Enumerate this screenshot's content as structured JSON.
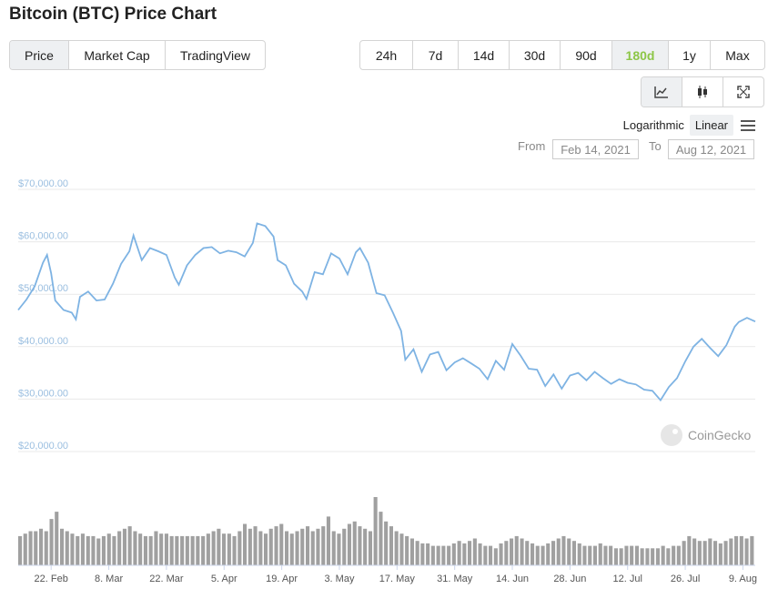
{
  "title": "Bitcoin (BTC) Price Chart",
  "view_tabs": [
    {
      "label": "Price",
      "active": true
    },
    {
      "label": "Market Cap",
      "active": false
    },
    {
      "label": "TradingView",
      "active": false
    }
  ],
  "range_tabs": [
    {
      "label": "24h"
    },
    {
      "label": "7d"
    },
    {
      "label": "14d"
    },
    {
      "label": "30d"
    },
    {
      "label": "90d"
    },
    {
      "label": "180d",
      "active": true
    },
    {
      "label": "1y"
    },
    {
      "label": "Max"
    }
  ],
  "chart_icons": [
    "line-chart-icon",
    "candlestick-icon",
    "expand-icon"
  ],
  "scale": {
    "log_label": "Logarithmic",
    "linear_label": "Linear",
    "selected": "Linear"
  },
  "date_range": {
    "from_label": "From",
    "from": "Feb 14, 2021",
    "to_label": "To",
    "to": "Aug 12, 2021"
  },
  "watermark": "CoinGecko",
  "colors": {
    "line": "#7eb3e3",
    "accent": "#8dc647",
    "volume": "#a0a0a0",
    "grid": "#e9e9e9",
    "axis_label": "#9bbfe0"
  },
  "chart_data": {
    "type": "line",
    "ylim": [
      20000,
      70000
    ],
    "y_ticks": [
      "$70,000.00",
      "$60,000.00",
      "$50,000.00",
      "$40,000.00",
      "$30,000.00",
      "$20,000.00"
    ],
    "x_tick_labels": [
      "22. Feb",
      "8. Mar",
      "22. Mar",
      "5. Apr",
      "19. Apr",
      "3. May",
      "17. May",
      "31. May",
      "14. Jun",
      "28. Jun",
      "12. Jul",
      "26. Jul",
      "9. Aug"
    ],
    "x_ticks": [
      "2021-02-22",
      "2021-03-08",
      "2021-03-22",
      "2021-04-05",
      "2021-04-19",
      "2021-05-03",
      "2021-05-17",
      "2021-05-31",
      "2021-06-14",
      "2021-06-28",
      "2021-07-12",
      "2021-07-26",
      "2021-08-09"
    ],
    "series": [
      {
        "points": [
          [
            "2021-02-14",
            47000
          ],
          [
            "2021-02-16",
            49000
          ],
          [
            "2021-02-18",
            51500
          ],
          [
            "2021-02-20",
            56000
          ],
          [
            "2021-02-21",
            57500
          ],
          [
            "2021-02-22",
            54000
          ],
          [
            "2021-02-23",
            48800
          ],
          [
            "2021-02-25",
            47000
          ],
          [
            "2021-02-27",
            46500
          ],
          [
            "2021-02-28",
            45200
          ],
          [
            "2021-03-01",
            49500
          ],
          [
            "2021-03-03",
            50500
          ],
          [
            "2021-03-05",
            48800
          ],
          [
            "2021-03-07",
            49000
          ],
          [
            "2021-03-09",
            52000
          ],
          [
            "2021-03-11",
            55800
          ],
          [
            "2021-03-13",
            58200
          ],
          [
            "2021-03-14",
            61200
          ],
          [
            "2021-03-16",
            56500
          ],
          [
            "2021-03-18",
            58800
          ],
          [
            "2021-03-20",
            58200
          ],
          [
            "2021-03-22",
            57500
          ],
          [
            "2021-03-24",
            53200
          ],
          [
            "2021-03-25",
            51800
          ],
          [
            "2021-03-27",
            55500
          ],
          [
            "2021-03-29",
            57500
          ],
          [
            "2021-03-31",
            58800
          ],
          [
            "2021-04-02",
            59000
          ],
          [
            "2021-04-04",
            57800
          ],
          [
            "2021-04-06",
            58300
          ],
          [
            "2021-04-08",
            58000
          ],
          [
            "2021-04-10",
            57200
          ],
          [
            "2021-04-12",
            59800
          ],
          [
            "2021-04-13",
            63500
          ],
          [
            "2021-04-15",
            63000
          ],
          [
            "2021-04-17",
            61000
          ],
          [
            "2021-04-18",
            56500
          ],
          [
            "2021-04-20",
            55500
          ],
          [
            "2021-04-22",
            52000
          ],
          [
            "2021-04-24",
            50500
          ],
          [
            "2021-04-25",
            49100
          ],
          [
            "2021-04-27",
            54200
          ],
          [
            "2021-04-29",
            53800
          ],
          [
            "2021-05-01",
            57800
          ],
          [
            "2021-05-03",
            56800
          ],
          [
            "2021-05-05",
            53800
          ],
          [
            "2021-05-07",
            58000
          ],
          [
            "2021-05-08",
            58800
          ],
          [
            "2021-05-10",
            56000
          ],
          [
            "2021-05-12",
            50200
          ],
          [
            "2021-05-14",
            49800
          ],
          [
            "2021-05-16",
            46500
          ],
          [
            "2021-05-18",
            43000
          ],
          [
            "2021-05-19",
            37500
          ],
          [
            "2021-05-21",
            39500
          ],
          [
            "2021-05-23",
            35200
          ],
          [
            "2021-05-25",
            38500
          ],
          [
            "2021-05-27",
            39000
          ],
          [
            "2021-05-29",
            35500
          ],
          [
            "2021-05-31",
            37000
          ],
          [
            "2021-06-02",
            37800
          ],
          [
            "2021-06-04",
            36800
          ],
          [
            "2021-06-06",
            35800
          ],
          [
            "2021-06-08",
            33800
          ],
          [
            "2021-06-10",
            37300
          ],
          [
            "2021-06-12",
            35600
          ],
          [
            "2021-06-14",
            40500
          ],
          [
            "2021-06-16",
            38300
          ],
          [
            "2021-06-18",
            35800
          ],
          [
            "2021-06-20",
            35600
          ],
          [
            "2021-06-22",
            32500
          ],
          [
            "2021-06-24",
            34700
          ],
          [
            "2021-06-26",
            32000
          ],
          [
            "2021-06-28",
            34500
          ],
          [
            "2021-06-30",
            35000
          ],
          [
            "2021-07-02",
            33600
          ],
          [
            "2021-07-04",
            35200
          ],
          [
            "2021-07-06",
            34000
          ],
          [
            "2021-07-08",
            32900
          ],
          [
            "2021-07-10",
            33800
          ],
          [
            "2021-07-12",
            33100
          ],
          [
            "2021-07-14",
            32800
          ],
          [
            "2021-07-16",
            31800
          ],
          [
            "2021-07-18",
            31600
          ],
          [
            "2021-07-20",
            29800
          ],
          [
            "2021-07-22",
            32300
          ],
          [
            "2021-07-24",
            34000
          ],
          [
            "2021-07-26",
            37200
          ],
          [
            "2021-07-28",
            40000
          ],
          [
            "2021-07-30",
            41500
          ],
          [
            "2021-08-01",
            39800
          ],
          [
            "2021-08-03",
            38200
          ],
          [
            "2021-08-05",
            40300
          ],
          [
            "2021-08-07",
            43800
          ],
          [
            "2021-08-08",
            44700
          ],
          [
            "2021-08-10",
            45500
          ],
          [
            "2021-08-12",
            44800
          ]
        ]
      }
    ],
    "volume": [
      12,
      13,
      14,
      14,
      15,
      14,
      19,
      22,
      15,
      14,
      13,
      12,
      13,
      12,
      12,
      11,
      12,
      13,
      12,
      14,
      15,
      16,
      14,
      13,
      12,
      12,
      14,
      13,
      13,
      12,
      12,
      12,
      12,
      12,
      12,
      12,
      13,
      14,
      15,
      13,
      13,
      12,
      14,
      17,
      15,
      16,
      14,
      13,
      15,
      16,
      17,
      14,
      13,
      14,
      15,
      16,
      14,
      15,
      16,
      20,
      14,
      13,
      15,
      17,
      18,
      16,
      15,
      14,
      28,
      22,
      18,
      16,
      14,
      13,
      12,
      11,
      10,
      9,
      9,
      8,
      8,
      8,
      8,
      9,
      10,
      9,
      10,
      11,
      9,
      8,
      8,
      7,
      9,
      10,
      11,
      12,
      11,
      10,
      9,
      8,
      8,
      9,
      10,
      11,
      12,
      11,
      10,
      9,
      8,
      8,
      8,
      9,
      8,
      8,
      7,
      7,
      8,
      8,
      8,
      7,
      7,
      7,
      7,
      8,
      7,
      8,
      8,
      10,
      12,
      11,
      10,
      10,
      11,
      10,
      9,
      10,
      11,
      12,
      12,
      11,
      12
    ]
  }
}
